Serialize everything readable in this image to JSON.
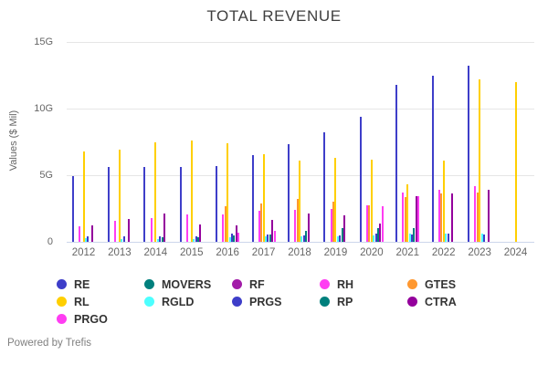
{
  "title": "TOTAL REVENUE",
  "y_axis": {
    "label": "Values ($ Mil)"
  },
  "footer": "Powered by Trefis",
  "chart_data": {
    "type": "bar",
    "title": "TOTAL REVENUE",
    "xlabel": "",
    "ylabel": "Values ($ Mil)",
    "ylim": [
      0,
      15.4
    ],
    "grid": true,
    "legend_position": "bottom",
    "axis_ticks": [
      {
        "value": 0,
        "label": "0"
      },
      {
        "value": 5,
        "label": "5G"
      },
      {
        "value": 10,
        "label": "10G"
      },
      {
        "value": 15,
        "label": "15G"
      }
    ],
    "categories": [
      "2012",
      "2013",
      "2014",
      "2015",
      "2016",
      "2017",
      "2018",
      "2019",
      "2020",
      "2021",
      "2022",
      "2023",
      "2024"
    ],
    "series": [
      {
        "name": "RE",
        "color": "#3e3ec9",
        "values": [
          4.9,
          5.6,
          5.6,
          5.65,
          5.7,
          6.5,
          7.3,
          8.2,
          9.4,
          11.8,
          12.5,
          13.2,
          0
        ]
      },
      {
        "name": "MOVERS",
        "color": "#00807d",
        "values": [
          0,
          0,
          0,
          0,
          0,
          0,
          0,
          0,
          0,
          0,
          0,
          0,
          0
        ]
      },
      {
        "name": "RF",
        "color": "#a21ca8",
        "values": [
          0,
          0,
          0,
          0,
          0,
          0,
          0,
          0,
          0,
          0,
          0,
          0,
          0
        ]
      },
      {
        "name": "RH",
        "color": "#ff3df2",
        "values": [
          1.15,
          1.55,
          1.8,
          2.05,
          2.05,
          2.3,
          2.4,
          2.5,
          2.75,
          3.7,
          3.9,
          4.2,
          0
        ]
      },
      {
        "name": "GTES",
        "color": "#ff9830",
        "values": [
          0,
          0,
          0,
          0,
          2.7,
          2.9,
          3.25,
          3.0,
          2.75,
          3.35,
          3.6,
          3.7,
          0
        ]
      },
      {
        "name": "RL",
        "color": "#ffcf00",
        "values": [
          6.8,
          6.9,
          7.45,
          7.6,
          7.4,
          6.6,
          6.1,
          6.3,
          6.15,
          4.3,
          6.1,
          12.2,
          12.0
        ]
      },
      {
        "name": "RGLD",
        "color": "#4dffff",
        "values": [
          0.27,
          0.22,
          0.24,
          0.23,
          0.36,
          0.44,
          0.4,
          0.42,
          0.5,
          0.6,
          0.6,
          0.65,
          0
        ]
      },
      {
        "name": "PRGS",
        "color": "#3e3ec9",
        "values": [
          0.41,
          0.4,
          0.4,
          0.4,
          0.6,
          0.55,
          0.5,
          0.45,
          0.6,
          0.55,
          0.6,
          0.55,
          0
        ]
      },
      {
        "name": "RP",
        "color": "#00807d",
        "values": [
          0,
          0,
          0.35,
          0.35,
          0.48,
          0.57,
          0.85,
          1.0,
          1.05,
          1.05,
          0,
          0,
          0
        ]
      },
      {
        "name": "CTRA",
        "color": "#94009c",
        "values": [
          1.2,
          1.7,
          2.1,
          1.3,
          1.2,
          1.65,
          2.1,
          2.0,
          1.4,
          3.45,
          3.65,
          3.9,
          0
        ]
      },
      {
        "name": "PRGO",
        "color": "#ff3df2",
        "values": [
          0,
          0,
          0,
          0,
          0.7,
          0.8,
          0,
          0,
          2.7,
          3.4,
          0,
          0,
          0
        ]
      }
    ]
  }
}
